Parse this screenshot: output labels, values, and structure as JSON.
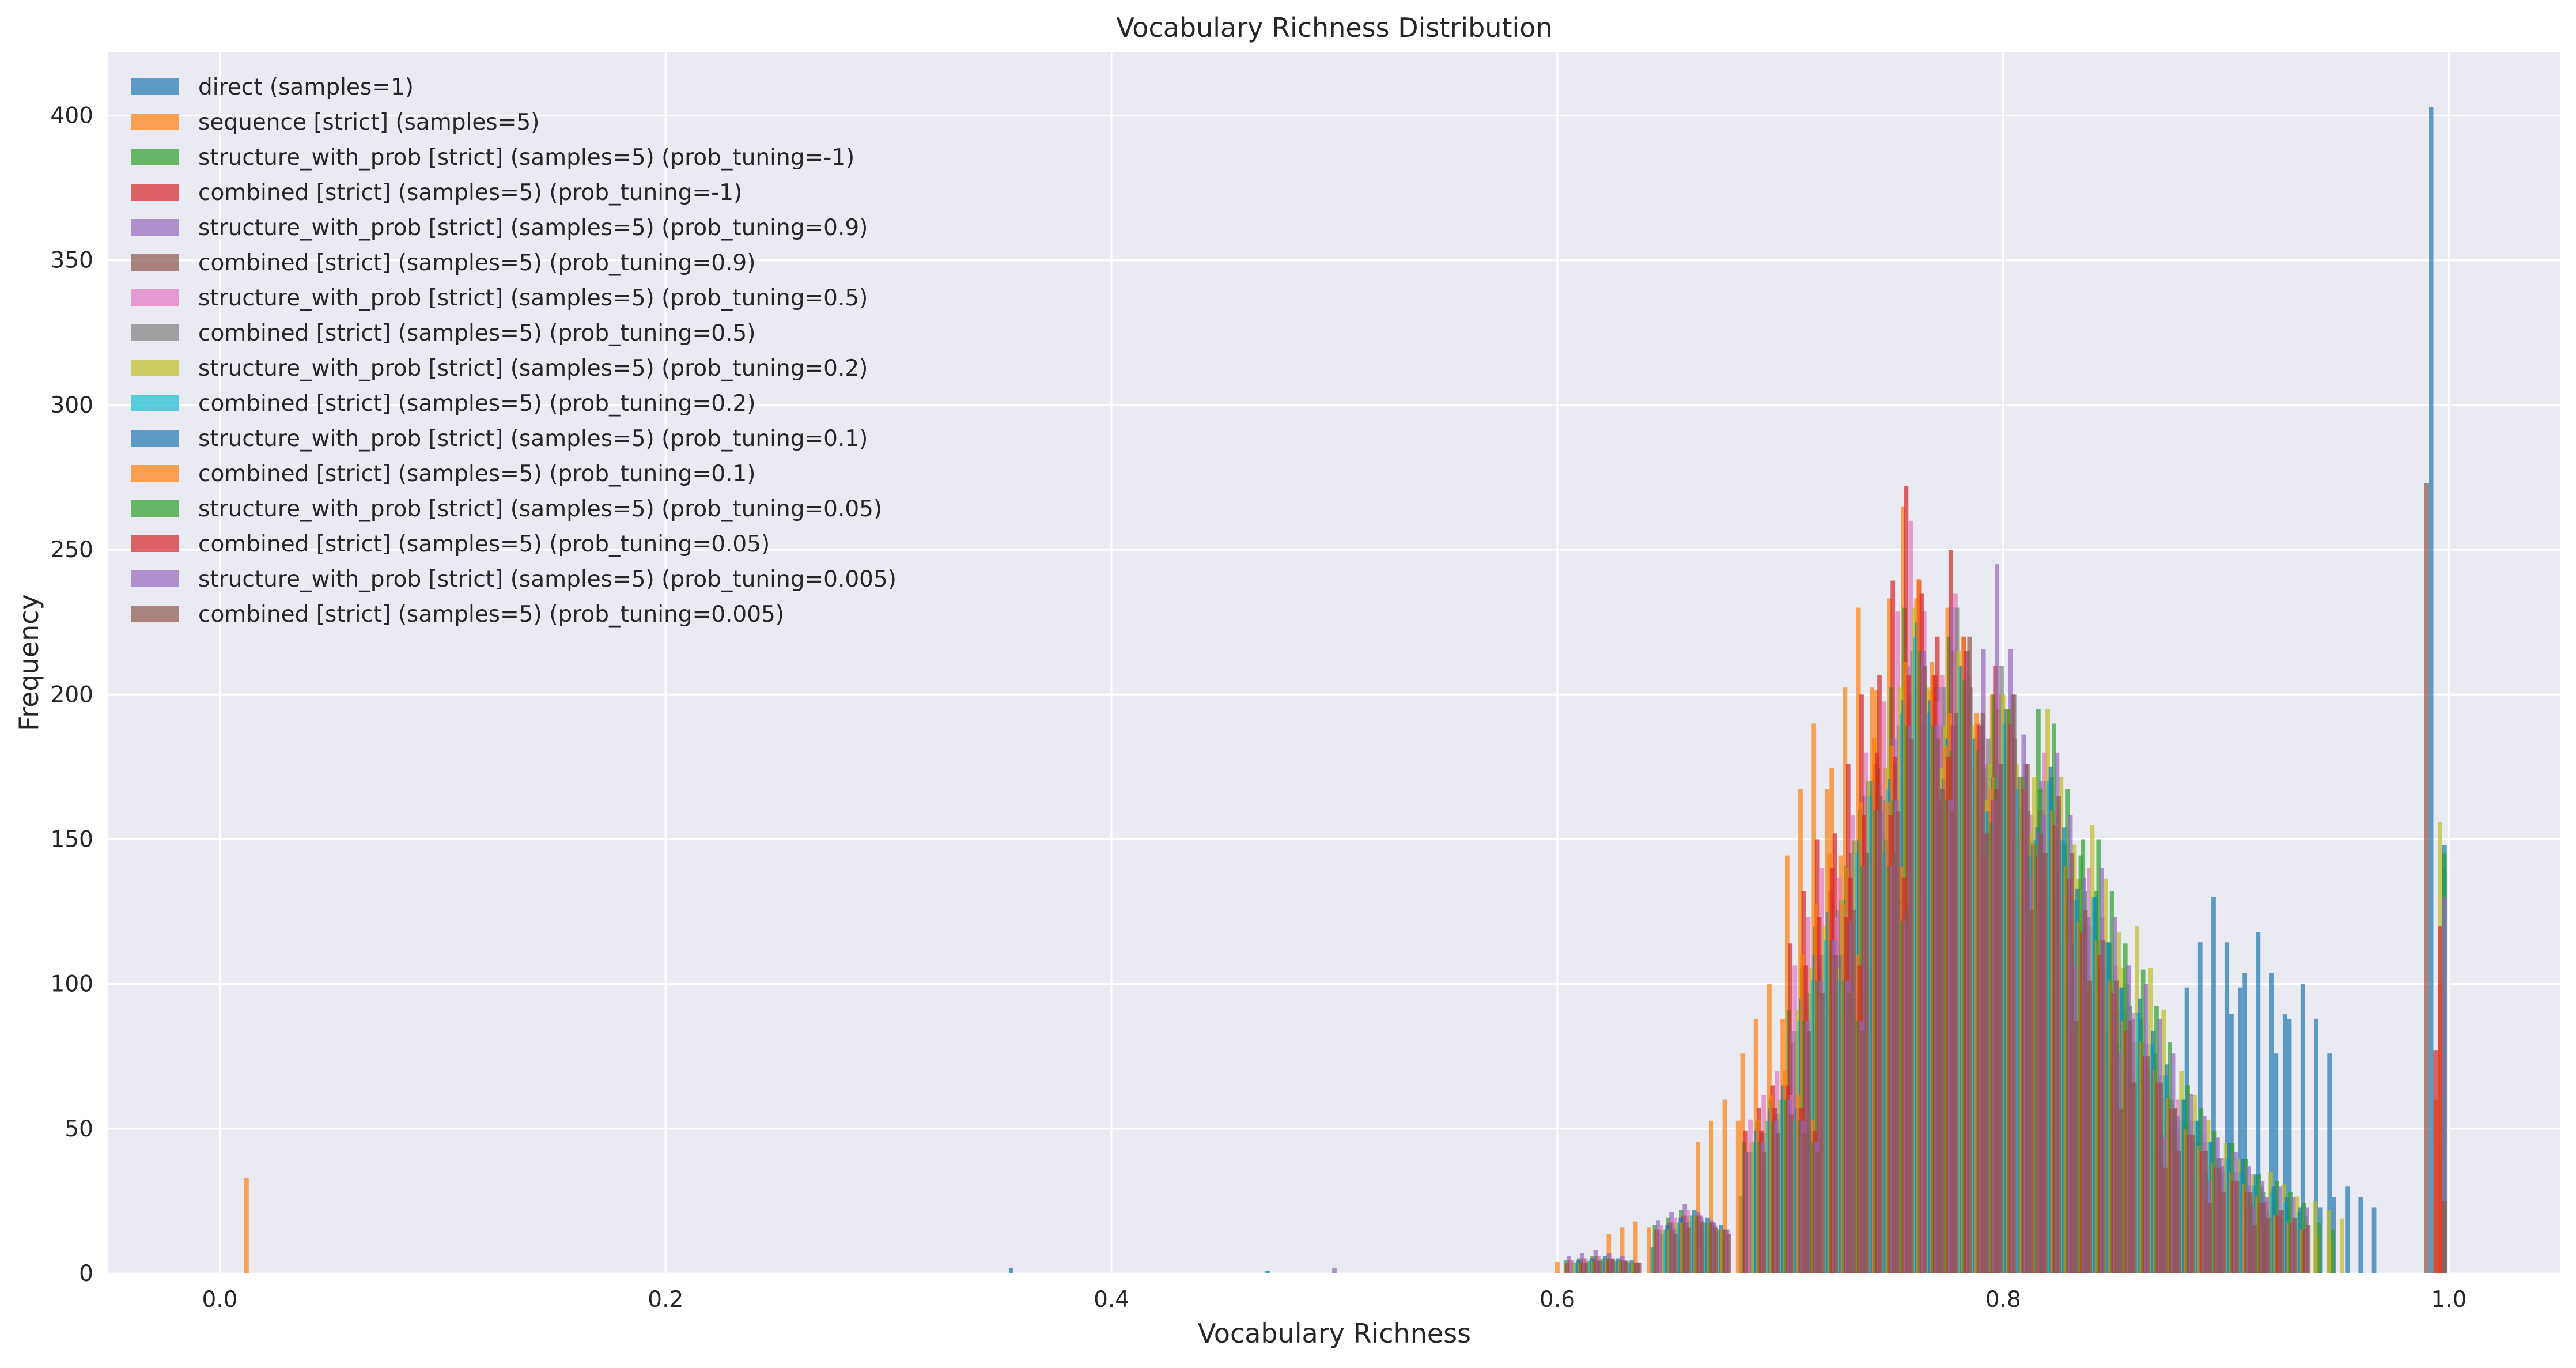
{
  "chart_data": {
    "type": "bar",
    "subtype": "overlaid histogram",
    "title": "Vocabulary Richness Distribution",
    "xlabel": "Vocabulary Richness",
    "ylabel": "Frequency",
    "xlim": [
      -0.05,
      1.05
    ],
    "ylim": [
      0,
      422
    ],
    "x_ticks": [
      0.0,
      0.2,
      0.4,
      0.6,
      0.8,
      1.0
    ],
    "x_tick_labels": [
      "0.0",
      "0.2",
      "0.4",
      "0.6",
      "0.8",
      "1.0"
    ],
    "y_ticks": [
      0,
      50,
      100,
      150,
      200,
      250,
      300,
      350,
      400
    ],
    "y_tick_labels": [
      "0",
      "50",
      "100",
      "150",
      "200",
      "250",
      "300",
      "350",
      "400"
    ],
    "grid": true,
    "background": "#eaeaf2",
    "legend_position": "top-left",
    "bin_width": 0.002,
    "series": [
      {
        "name": "direct (samples=1)",
        "color": "#1f77b4",
        "bins": [
          [
            0.355,
            2
          ],
          [
            0.47,
            1
          ],
          [
            0.62,
            4
          ],
          [
            0.66,
            12
          ],
          [
            0.7,
            35
          ],
          [
            0.74,
            120
          ],
          [
            0.76,
            170
          ],
          [
            0.78,
            185
          ],
          [
            0.8,
            175
          ],
          [
            0.82,
            150
          ],
          [
            0.84,
            110
          ],
          [
            0.86,
            90
          ],
          [
            0.88,
            60
          ],
          [
            0.9,
            130
          ],
          [
            0.92,
            118
          ],
          [
            0.94,
            100
          ],
          [
            0.96,
            30
          ],
          [
            0.992,
            403
          ]
        ]
      },
      {
        "name": "sequence [strict] (samples=5)",
        "color": "#ff7f0e",
        "bins": [
          [
            0.012,
            33
          ],
          [
            0.6,
            4
          ],
          [
            0.64,
            18
          ],
          [
            0.68,
            60
          ],
          [
            0.7,
            100
          ],
          [
            0.72,
            190
          ],
          [
            0.74,
            230
          ],
          [
            0.76,
            265
          ],
          [
            0.78,
            230
          ],
          [
            0.8,
            200
          ],
          [
            0.82,
            140
          ],
          [
            0.84,
            90
          ],
          [
            0.86,
            55
          ],
          [
            0.88,
            35
          ],
          [
            0.9,
            25
          ],
          [
            0.94,
            15
          ],
          [
            0.994,
            60
          ]
        ]
      },
      {
        "name": "structure_with_prob [strict] (samples=5) (prob_tuning=-1)",
        "color": "#2ca02c",
        "bins": [
          [
            0.62,
            6
          ],
          [
            0.66,
            22
          ],
          [
            0.7,
            60
          ],
          [
            0.72,
            120
          ],
          [
            0.74,
            160
          ],
          [
            0.76,
            230
          ],
          [
            0.78,
            220
          ],
          [
            0.8,
            200
          ],
          [
            0.82,
            195
          ],
          [
            0.84,
            150
          ],
          [
            0.86,
            100
          ],
          [
            0.88,
            60
          ],
          [
            0.9,
            40
          ],
          [
            0.92,
            30
          ],
          [
            0.94,
            20
          ],
          [
            0.996,
            40
          ]
        ]
      },
      {
        "name": "combined [strict] (samples=5) (prob_tuning=-1)",
        "color": "#d62728",
        "bins": [
          [
            0.62,
            5
          ],
          [
            0.66,
            20
          ],
          [
            0.7,
            65
          ],
          [
            0.72,
            150
          ],
          [
            0.74,
            200
          ],
          [
            0.76,
            272
          ],
          [
            0.78,
            250
          ],
          [
            0.8,
            210
          ],
          [
            0.82,
            160
          ],
          [
            0.84,
            120
          ],
          [
            0.86,
            80
          ],
          [
            0.88,
            50
          ],
          [
            0.9,
            35
          ],
          [
            0.92,
            20
          ],
          [
            0.994,
            77
          ]
        ]
      },
      {
        "name": "structure_with_prob [strict] (samples=5) (prob_tuning=0.9)",
        "color": "#9467bd",
        "bins": [
          [
            0.5,
            2
          ],
          [
            0.62,
            8
          ],
          [
            0.66,
            24
          ],
          [
            0.7,
            55
          ],
          [
            0.72,
            110
          ],
          [
            0.74,
            150
          ],
          [
            0.76,
            210
          ],
          [
            0.78,
            230
          ],
          [
            0.8,
            245
          ],
          [
            0.82,
            170
          ],
          [
            0.84,
            120
          ],
          [
            0.86,
            80
          ],
          [
            0.88,
            55
          ],
          [
            0.9,
            40
          ],
          [
            0.92,
            25
          ],
          [
            0.996,
            30
          ]
        ]
      },
      {
        "name": "combined [strict] (samples=5) (prob_tuning=0.9)",
        "color": "#8c564b",
        "bins": [
          [
            0.62,
            6
          ],
          [
            0.66,
            20
          ],
          [
            0.7,
            55
          ],
          [
            0.72,
            105
          ],
          [
            0.74,
            165
          ],
          [
            0.76,
            200
          ],
          [
            0.78,
            215
          ],
          [
            0.8,
            195
          ],
          [
            0.82,
            160
          ],
          [
            0.84,
            110
          ],
          [
            0.86,
            70
          ],
          [
            0.88,
            45
          ],
          [
            0.9,
            30
          ],
          [
            0.92,
            22
          ],
          [
            0.99,
            273
          ]
        ]
      },
      {
        "name": "structure_with_prob [strict] (samples=5) (prob_tuning=0.5)",
        "color": "#e377c2",
        "bins": [
          [
            0.62,
            6
          ],
          [
            0.66,
            22
          ],
          [
            0.7,
            70
          ],
          [
            0.72,
            140
          ],
          [
            0.74,
            180
          ],
          [
            0.76,
            260
          ],
          [
            0.78,
            235
          ],
          [
            0.8,
            200
          ],
          [
            0.82,
            180
          ],
          [
            0.84,
            140
          ],
          [
            0.86,
            90
          ],
          [
            0.88,
            60
          ],
          [
            0.9,
            40
          ],
          [
            0.92,
            25
          ],
          [
            0.996,
            35
          ]
        ]
      },
      {
        "name": "combined [strict] (samples=5) (prob_tuning=0.5)",
        "color": "#7f7f7f",
        "bins": [
          [
            0.62,
            5
          ],
          [
            0.66,
            18
          ],
          [
            0.7,
            55
          ],
          [
            0.72,
            110
          ],
          [
            0.74,
            170
          ],
          [
            0.76,
            215
          ],
          [
            0.78,
            230
          ],
          [
            0.8,
            210
          ],
          [
            0.82,
            170
          ],
          [
            0.84,
            120
          ],
          [
            0.86,
            80
          ],
          [
            0.88,
            50
          ],
          [
            0.9,
            35
          ],
          [
            0.92,
            22
          ],
          [
            0.996,
            45
          ]
        ]
      },
      {
        "name": "structure_with_prob [strict] (samples=5) (prob_tuning=0.2)",
        "color": "#bcbd22",
        "bins": [
          [
            0.62,
            5
          ],
          [
            0.66,
            20
          ],
          [
            0.7,
            60
          ],
          [
            0.72,
            120
          ],
          [
            0.74,
            170
          ],
          [
            0.76,
            230
          ],
          [
            0.78,
            215
          ],
          [
            0.8,
            200
          ],
          [
            0.82,
            195
          ],
          [
            0.84,
            155
          ],
          [
            0.86,
            120
          ],
          [
            0.88,
            70
          ],
          [
            0.9,
            45
          ],
          [
            0.92,
            35
          ],
          [
            0.94,
            25
          ],
          [
            0.996,
            156
          ]
        ]
      },
      {
        "name": "combined [strict] (samples=5) (prob_tuning=0.2)",
        "color": "#17becf",
        "bins": [
          [
            0.62,
            5
          ],
          [
            0.66,
            20
          ],
          [
            0.7,
            60
          ],
          [
            0.72,
            115
          ],
          [
            0.74,
            165
          ],
          [
            0.76,
            220
          ],
          [
            0.78,
            210
          ],
          [
            0.8,
            190
          ],
          [
            0.82,
            170
          ],
          [
            0.84,
            130
          ],
          [
            0.86,
            90
          ],
          [
            0.88,
            60
          ],
          [
            0.9,
            40
          ],
          [
            0.92,
            28
          ],
          [
            0.998,
            140
          ]
        ]
      },
      {
        "name": "structure_with_prob [strict] (samples=5) (prob_tuning=0.1)",
        "color": "#1f77b4",
        "bins": [
          [
            0.62,
            6
          ],
          [
            0.66,
            22
          ],
          [
            0.7,
            65
          ],
          [
            0.72,
            125
          ],
          [
            0.74,
            170
          ],
          [
            0.76,
            225
          ],
          [
            0.78,
            210
          ],
          [
            0.8,
            195
          ],
          [
            0.82,
            175
          ],
          [
            0.84,
            130
          ],
          [
            0.86,
            95
          ],
          [
            0.88,
            60
          ],
          [
            0.9,
            45
          ],
          [
            0.92,
            30
          ],
          [
            0.998,
            148
          ]
        ]
      },
      {
        "name": "combined [strict] (samples=5) (prob_tuning=0.1)",
        "color": "#ff7f0e",
        "bins": [
          [
            0.62,
            5
          ],
          [
            0.66,
            20
          ],
          [
            0.7,
            70
          ],
          [
            0.72,
            145
          ],
          [
            0.74,
            185
          ],
          [
            0.76,
            240
          ],
          [
            0.78,
            220
          ],
          [
            0.8,
            195
          ],
          [
            0.82,
            160
          ],
          [
            0.84,
            115
          ],
          [
            0.86,
            80
          ],
          [
            0.88,
            50
          ],
          [
            0.9,
            35
          ],
          [
            0.92,
            20
          ],
          [
            0.996,
            100
          ]
        ]
      },
      {
        "name": "structure_with_prob [strict] (samples=5) (prob_tuning=0.05)",
        "color": "#2ca02c",
        "bins": [
          [
            0.62,
            5
          ],
          [
            0.66,
            20
          ],
          [
            0.7,
            60
          ],
          [
            0.72,
            115
          ],
          [
            0.74,
            160
          ],
          [
            0.76,
            215
          ],
          [
            0.78,
            205
          ],
          [
            0.8,
            195
          ],
          [
            0.82,
            190
          ],
          [
            0.84,
            150
          ],
          [
            0.86,
            105
          ],
          [
            0.88,
            65
          ],
          [
            0.9,
            45
          ],
          [
            0.92,
            32
          ],
          [
            0.998,
            145
          ]
        ]
      },
      {
        "name": "combined [strict] (samples=5) (prob_tuning=0.05)",
        "color": "#d62728",
        "bins": [
          [
            0.62,
            5
          ],
          [
            0.66,
            20
          ],
          [
            0.7,
            65
          ],
          [
            0.72,
            140
          ],
          [
            0.74,
            180
          ],
          [
            0.76,
            235
          ],
          [
            0.78,
            215
          ],
          [
            0.8,
            190
          ],
          [
            0.82,
            155
          ],
          [
            0.84,
            110
          ],
          [
            0.86,
            75
          ],
          [
            0.88,
            48
          ],
          [
            0.9,
            32
          ],
          [
            0.92,
            20
          ],
          [
            0.996,
            120
          ]
        ]
      },
      {
        "name": "structure_with_prob [strict] (samples=5) (prob_tuning=0.005)",
        "color": "#9467bd",
        "bins": [
          [
            0.62,
            5
          ],
          [
            0.66,
            20
          ],
          [
            0.7,
            60
          ],
          [
            0.72,
            115
          ],
          [
            0.74,
            160
          ],
          [
            0.76,
            215
          ],
          [
            0.78,
            215
          ],
          [
            0.8,
            200
          ],
          [
            0.82,
            180
          ],
          [
            0.84,
            140
          ],
          [
            0.86,
            100
          ],
          [
            0.88,
            62
          ],
          [
            0.9,
            42
          ],
          [
            0.92,
            30
          ],
          [
            0.998,
            130
          ]
        ]
      },
      {
        "name": "combined [strict] (samples=5) (prob_tuning=0.005)",
        "color": "#8c564b",
        "bins": [
          [
            0.62,
            5
          ],
          [
            0.66,
            18
          ],
          [
            0.7,
            55
          ],
          [
            0.72,
            110
          ],
          [
            0.74,
            165
          ],
          [
            0.76,
            210
          ],
          [
            0.78,
            220
          ],
          [
            0.8,
            200
          ],
          [
            0.82,
            165
          ],
          [
            0.84,
            115
          ],
          [
            0.86,
            75
          ],
          [
            0.88,
            48
          ],
          [
            0.9,
            32
          ],
          [
            0.92,
            22
          ],
          [
            0.998,
            25
          ]
        ]
      }
    ]
  }
}
